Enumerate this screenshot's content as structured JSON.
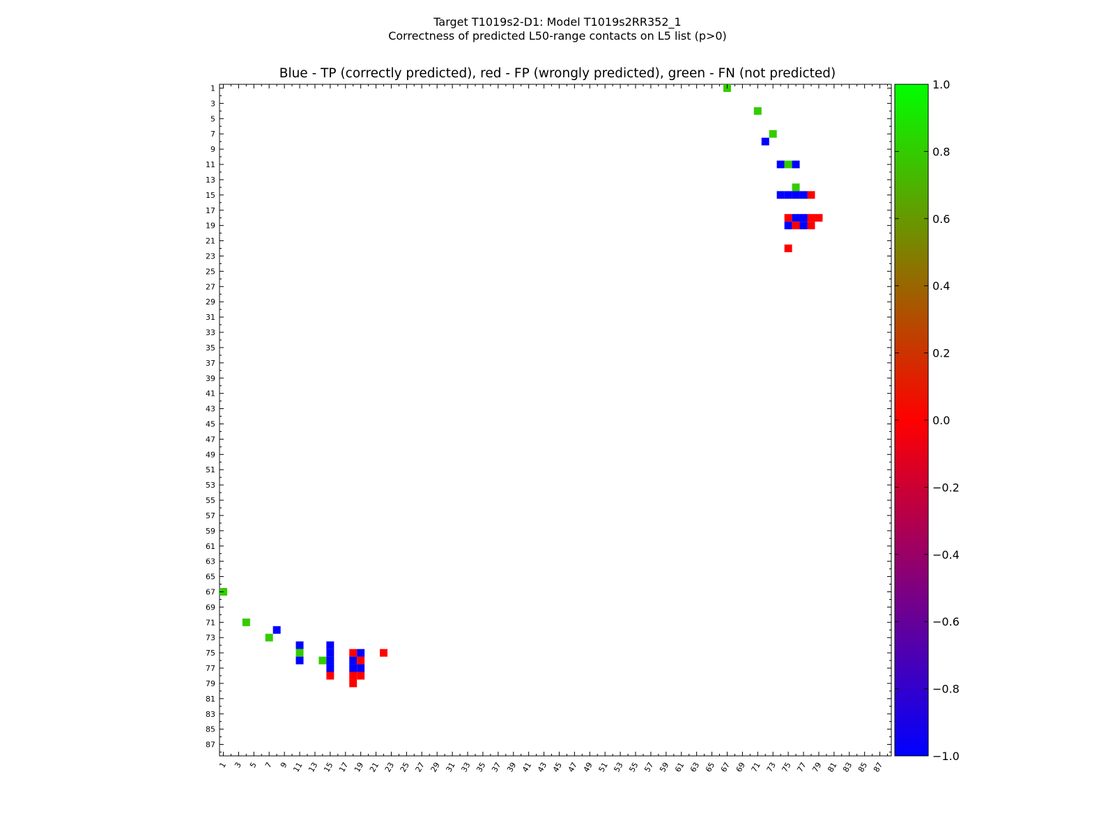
{
  "figure": {
    "title_line1": "Target T1019s2-D1: Model T1019s2RR352_1",
    "title_line2": "Correctness of predicted L50-range contacts on L5 list (p>0)"
  },
  "chart_data": {
    "type": "heatmap",
    "title": "Blue - TP (correctly predicted), red - FP (wrongly predicted), green - FN (not predicted)",
    "xlabel": "",
    "ylabel": "",
    "residue_range": [
      1,
      88
    ],
    "tick_labels": [
      1,
      3,
      5,
      7,
      9,
      11,
      13,
      15,
      17,
      19,
      21,
      23,
      25,
      27,
      29,
      31,
      33,
      35,
      37,
      39,
      41,
      43,
      45,
      47,
      49,
      51,
      53,
      55,
      57,
      59,
      61,
      63,
      65,
      67,
      69,
      71,
      73,
      75,
      77,
      79,
      81,
      83,
      85,
      87
    ],
    "legend": [
      {
        "label": "TP (correctly predicted)",
        "color": "#0000ff",
        "value": -1.0
      },
      {
        "label": "FP (wrongly predicted)",
        "color": "#ff0000",
        "value": 0.0
      },
      {
        "label": "FN (not predicted)",
        "color": "#33cc00",
        "value": 0.8
      }
    ],
    "colorbar": {
      "min": -1.0,
      "max": 1.0,
      "ticks": [
        "1.0",
        "0.8",
        "0.6",
        "0.4",
        "0.2",
        "0.0",
        "−0.2",
        "−0.4",
        "−0.6",
        "−0.8",
        "−1.0"
      ],
      "stops": [
        "#0000ff",
        "#ff0000",
        "#00ff00"
      ]
    },
    "cells": [
      {
        "row": 1,
        "col": 67,
        "cls": "FN"
      },
      {
        "row": 4,
        "col": 71,
        "cls": "FN"
      },
      {
        "row": 7,
        "col": 73,
        "cls": "FN"
      },
      {
        "row": 8,
        "col": 72,
        "cls": "TP"
      },
      {
        "row": 11,
        "col": 74,
        "cls": "TP"
      },
      {
        "row": 11,
        "col": 75,
        "cls": "FN"
      },
      {
        "row": 11,
        "col": 76,
        "cls": "TP"
      },
      {
        "row": 14,
        "col": 76,
        "cls": "FN"
      },
      {
        "row": 15,
        "col": 74,
        "cls": "TP"
      },
      {
        "row": 15,
        "col": 75,
        "cls": "TP"
      },
      {
        "row": 15,
        "col": 76,
        "cls": "TP"
      },
      {
        "row": 15,
        "col": 77,
        "cls": "TP"
      },
      {
        "row": 15,
        "col": 78,
        "cls": "FP"
      },
      {
        "row": 18,
        "col": 75,
        "cls": "FP"
      },
      {
        "row": 18,
        "col": 76,
        "cls": "TP"
      },
      {
        "row": 18,
        "col": 77,
        "cls": "TP"
      },
      {
        "row": 18,
        "col": 78,
        "cls": "FP"
      },
      {
        "row": 18,
        "col": 79,
        "cls": "FP"
      },
      {
        "row": 19,
        "col": 75,
        "cls": "TP"
      },
      {
        "row": 19,
        "col": 76,
        "cls": "FP"
      },
      {
        "row": 19,
        "col": 77,
        "cls": "TP"
      },
      {
        "row": 19,
        "col": 78,
        "cls": "FP"
      },
      {
        "row": 22,
        "col": 75,
        "cls": "FP"
      },
      {
        "row": 67,
        "col": 1,
        "cls": "FN"
      },
      {
        "row": 71,
        "col": 4,
        "cls": "FN"
      },
      {
        "row": 72,
        "col": 8,
        "cls": "TP"
      },
      {
        "row": 73,
        "col": 7,
        "cls": "FN"
      },
      {
        "row": 74,
        "col": 11,
        "cls": "TP"
      },
      {
        "row": 74,
        "col": 15,
        "cls": "TP"
      },
      {
        "row": 75,
        "col": 11,
        "cls": "FN"
      },
      {
        "row": 75,
        "col": 15,
        "cls": "TP"
      },
      {
        "row": 75,
        "col": 18,
        "cls": "FP"
      },
      {
        "row": 75,
        "col": 19,
        "cls": "TP"
      },
      {
        "row": 75,
        "col": 22,
        "cls": "FP"
      },
      {
        "row": 76,
        "col": 11,
        "cls": "TP"
      },
      {
        "row": 76,
        "col": 14,
        "cls": "FN"
      },
      {
        "row": 76,
        "col": 15,
        "cls": "TP"
      },
      {
        "row": 76,
        "col": 18,
        "cls": "TP"
      },
      {
        "row": 76,
        "col": 19,
        "cls": "FP"
      },
      {
        "row": 77,
        "col": 15,
        "cls": "TP"
      },
      {
        "row": 77,
        "col": 18,
        "cls": "TP"
      },
      {
        "row": 77,
        "col": 19,
        "cls": "TP"
      },
      {
        "row": 78,
        "col": 15,
        "cls": "FP"
      },
      {
        "row": 78,
        "col": 18,
        "cls": "FP"
      },
      {
        "row": 78,
        "col": 19,
        "cls": "FP"
      },
      {
        "row": 79,
        "col": 18,
        "cls": "FP"
      }
    ]
  }
}
